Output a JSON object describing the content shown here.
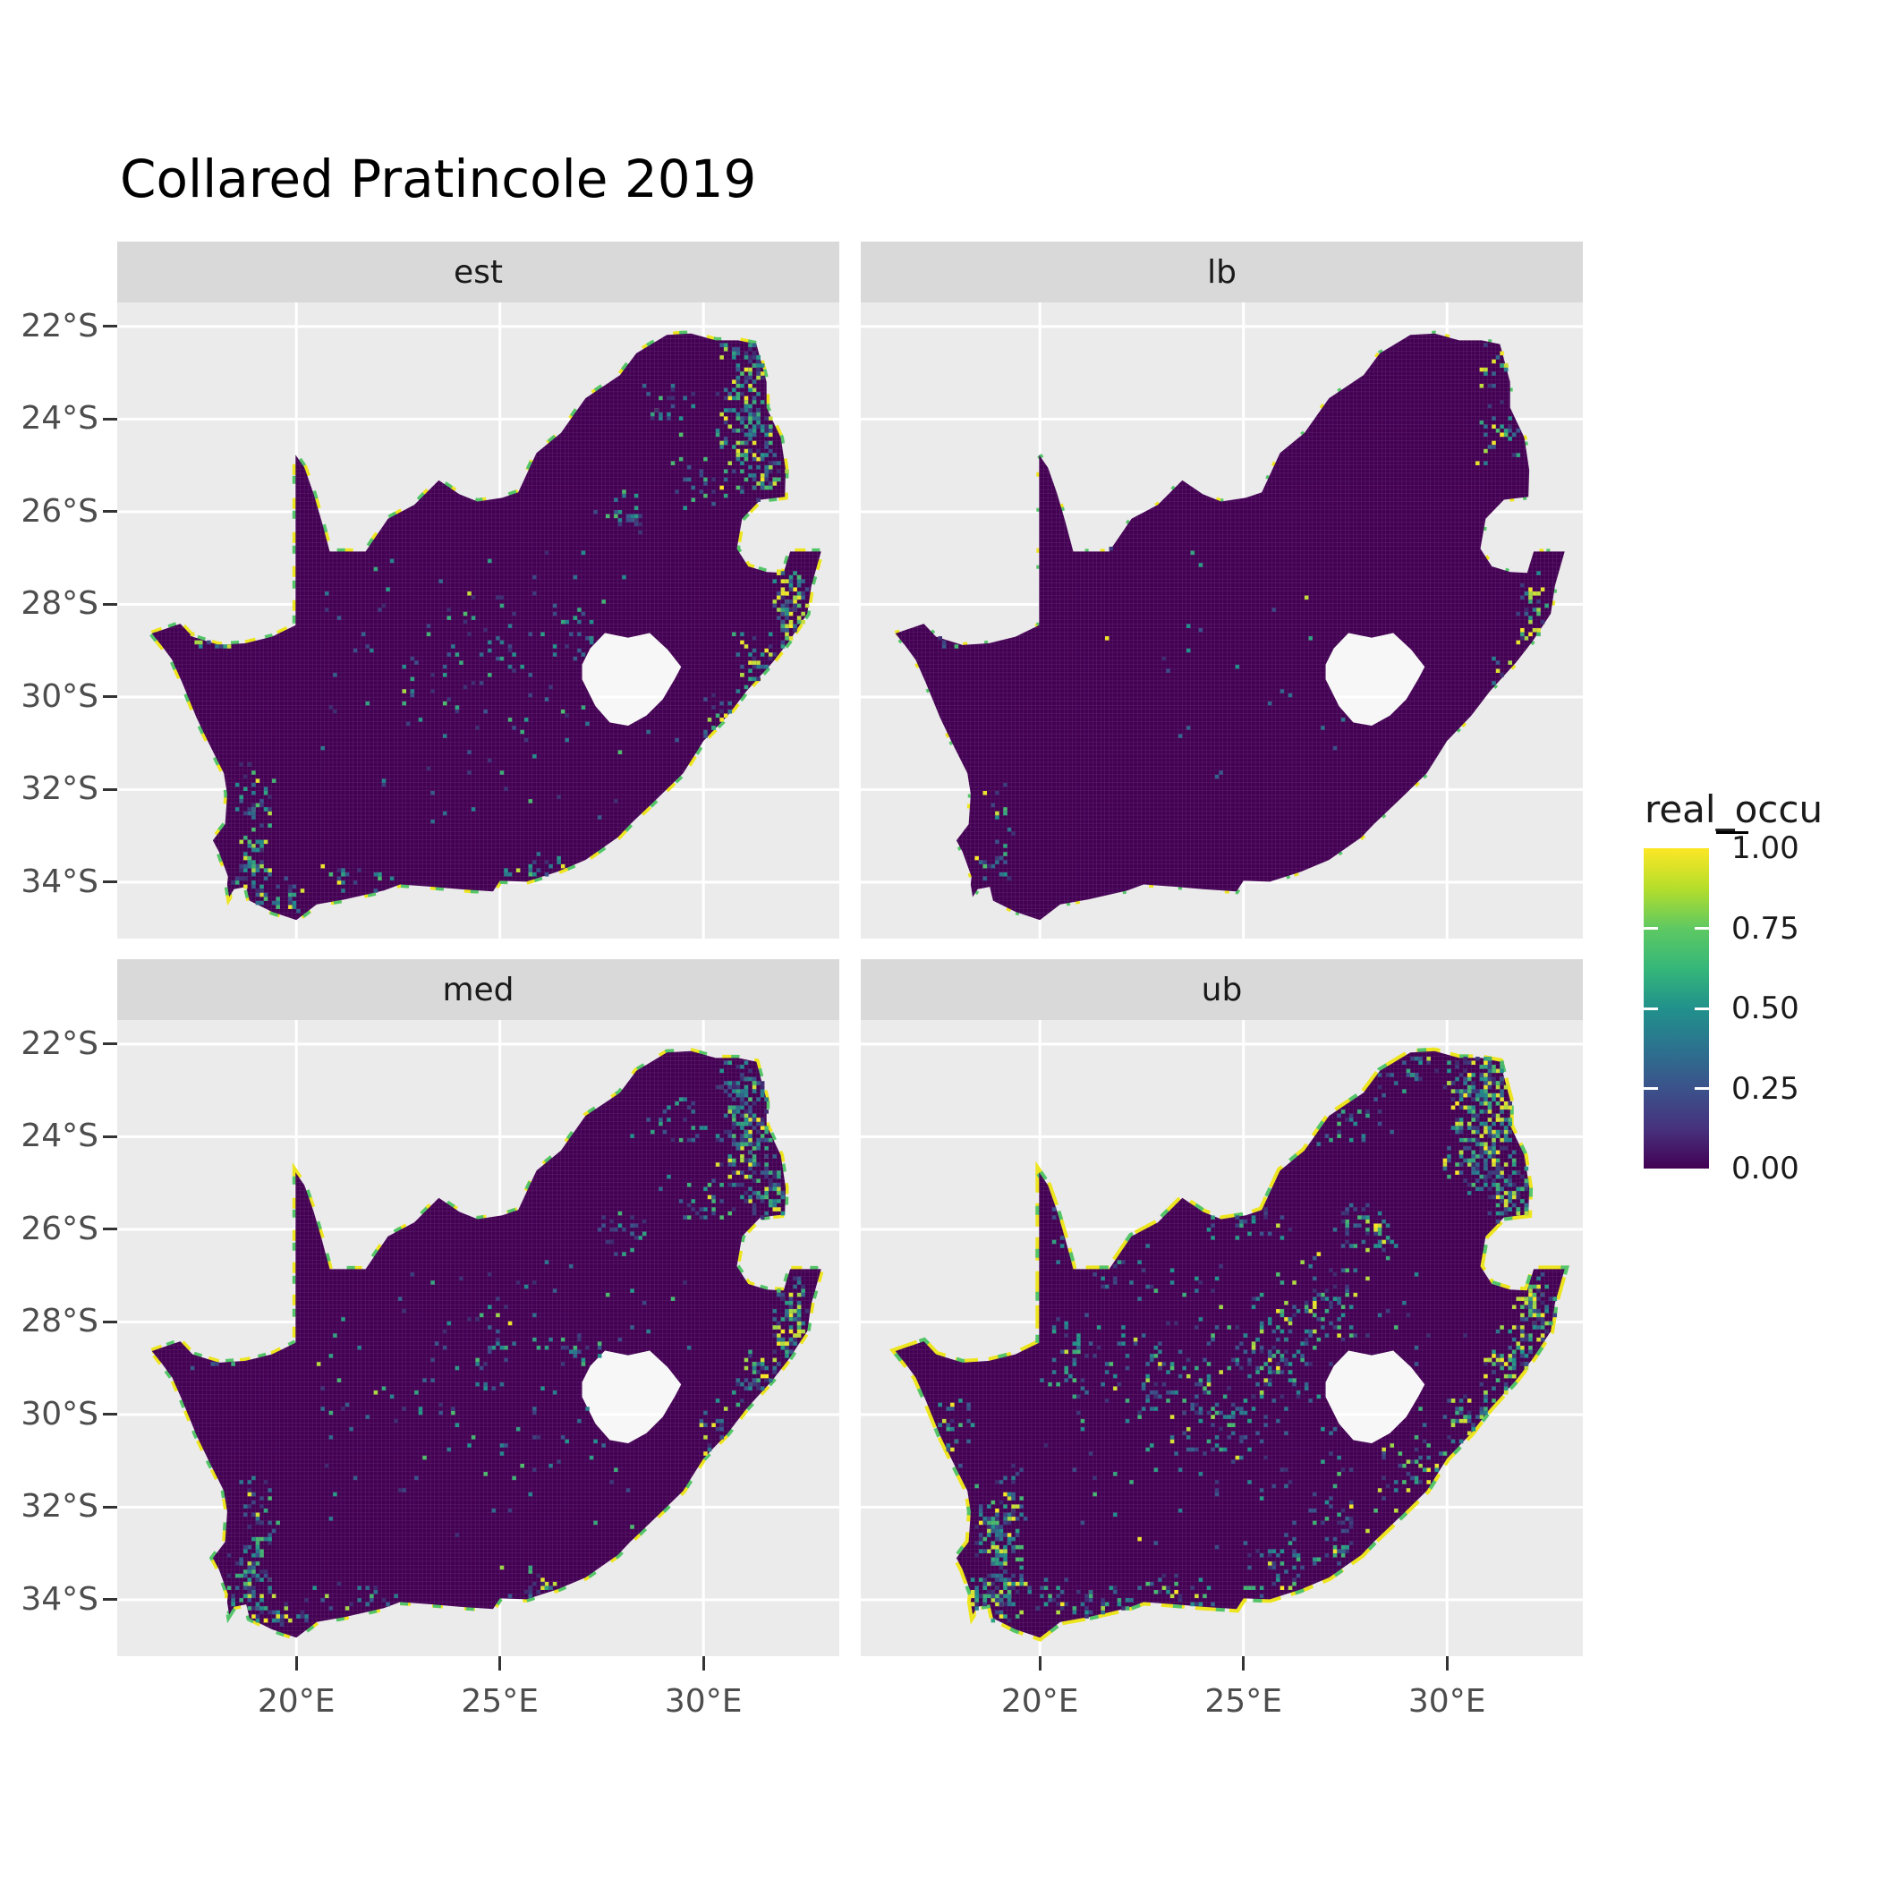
{
  "title": "Collared Pratincole 2019",
  "facets": [
    {
      "label": "est"
    },
    {
      "label": "lb"
    },
    {
      "label": "med"
    },
    {
      "label": "ub"
    }
  ],
  "axes": {
    "y_tick_labels": [
      "22°S",
      "24°S",
      "26°S",
      "28°S",
      "30°S",
      "32°S",
      "34°S"
    ],
    "x_tick_labels": [
      "20°E",
      "25°E",
      "30°E"
    ]
  },
  "legend": {
    "title": "real_occu",
    "tick_labels": [
      "1.00",
      "0.75",
      "0.50",
      "0.25",
      "0.00"
    ]
  },
  "colors": {
    "panel_bg": "#EBEBEB",
    "strip_bg": "#D9D9D9",
    "gridline": "#FFFFFF",
    "axis_text": "#4D4D4D",
    "tick_mark": "#333333",
    "base_fill": "#440154",
    "cell_grid_line": "rgba(255,255,255,0.14)",
    "hole_overlay": "rgba(255,255,255,0.62)",
    "coast_yellow": "#EDE51F",
    "coast_green": "#54C568"
  },
  "chart_data": {
    "type": "heatmap",
    "title": "Collared Pratincole 2019",
    "legend_title": "real_occu",
    "region": "South Africa occupancy raster, faceted by estimate type",
    "facets": [
      "est",
      "lb",
      "med",
      "ub"
    ],
    "value_range": [
      0,
      1
    ],
    "legend_breaks": [
      1.0,
      0.75,
      0.5,
      0.25,
      0.0
    ],
    "palette": "viridis",
    "viridis_stops": [
      [
        0,
        "#440154"
      ],
      [
        0.25,
        "#3B528B"
      ],
      [
        0.5,
        "#21918C"
      ],
      [
        0.75,
        "#5EC962"
      ],
      [
        1,
        "#FDE725"
      ]
    ],
    "lon_ticks": [
      20,
      25,
      30
    ],
    "lat_ticks": [
      -22,
      -24,
      -26,
      -28,
      -30,
      -32,
      -34
    ],
    "extent": {
      "lon": [
        15.6,
        33.34
      ],
      "lat": [
        -35.22,
        -21.48
      ]
    },
    "grid": true,
    "legend_position": "right",
    "cell_size_deg": 0.1,
    "boundary": [
      [
        16.45,
        -28.63
      ],
      [
        17.15,
        -28.42
      ],
      [
        17.45,
        -28.7
      ],
      [
        18.1,
        -28.88
      ],
      [
        18.75,
        -28.84
      ],
      [
        19.4,
        -28.7
      ],
      [
        19.98,
        -28.45
      ],
      [
        19.98,
        -24.77
      ],
      [
        20.2,
        -25.05
      ],
      [
        20.42,
        -25.6
      ],
      [
        20.62,
        -26.2
      ],
      [
        20.82,
        -26.86
      ],
      [
        21.7,
        -26.86
      ],
      [
        22.25,
        -26.15
      ],
      [
        22.9,
        -25.85
      ],
      [
        23.5,
        -25.32
      ],
      [
        24.0,
        -25.62
      ],
      [
        24.45,
        -25.78
      ],
      [
        25.05,
        -25.7
      ],
      [
        25.45,
        -25.58
      ],
      [
        25.9,
        -24.73
      ],
      [
        26.5,
        -24.3
      ],
      [
        27.1,
        -23.55
      ],
      [
        27.95,
        -23.05
      ],
      [
        28.35,
        -22.58
      ],
      [
        29.1,
        -22.18
      ],
      [
        29.7,
        -22.15
      ],
      [
        30.3,
        -22.3
      ],
      [
        30.85,
        -22.3
      ],
      [
        31.3,
        -22.38
      ],
      [
        31.55,
        -23.2
      ],
      [
        31.55,
        -23.75
      ],
      [
        31.9,
        -24.4
      ],
      [
        32.02,
        -25.1
      ],
      [
        32.0,
        -25.68
      ],
      [
        31.4,
        -25.74
      ],
      [
        30.95,
        -26.15
      ],
      [
        30.82,
        -26.8
      ],
      [
        31.1,
        -27.18
      ],
      [
        31.55,
        -27.3
      ],
      [
        31.97,
        -27.32
      ],
      [
        32.13,
        -26.86
      ],
      [
        32.89,
        -26.86
      ],
      [
        32.65,
        -27.6
      ],
      [
        32.55,
        -28.2
      ],
      [
        32.1,
        -28.8
      ],
      [
        31.7,
        -29.25
      ],
      [
        31.05,
        -29.88
      ],
      [
        30.6,
        -30.4
      ],
      [
        30.0,
        -30.95
      ],
      [
        29.5,
        -31.65
      ],
      [
        28.8,
        -32.25
      ],
      [
        28.2,
        -32.75
      ],
      [
        27.9,
        -33.03
      ],
      [
        27.1,
        -33.52
      ],
      [
        26.4,
        -33.78
      ],
      [
        25.65,
        -33.99
      ],
      [
        25.0,
        -33.97
      ],
      [
        24.83,
        -34.2
      ],
      [
        24.0,
        -34.15
      ],
      [
        23.35,
        -34.1
      ],
      [
        22.55,
        -34.05
      ],
      [
        22.15,
        -34.18
      ],
      [
        21.2,
        -34.37
      ],
      [
        20.5,
        -34.48
      ],
      [
        20.0,
        -34.82
      ],
      [
        19.4,
        -34.64
      ],
      [
        18.85,
        -34.4
      ],
      [
        18.77,
        -34.1
      ],
      [
        18.47,
        -34.15
      ],
      [
        18.35,
        -34.32
      ],
      [
        18.3,
        -34.05
      ],
      [
        18.32,
        -33.88
      ],
      [
        18.1,
        -33.35
      ],
      [
        17.95,
        -33.1
      ],
      [
        18.25,
        -32.75
      ],
      [
        18.3,
        -32.1
      ],
      [
        18.22,
        -31.65
      ],
      [
        17.85,
        -31.0
      ],
      [
        17.55,
        -30.45
      ],
      [
        17.2,
        -29.7
      ],
      [
        16.95,
        -29.2
      ],
      [
        16.7,
        -28.9
      ]
    ],
    "lesotho_hole": [
      [
        27.02,
        -29.62
      ],
      [
        27.35,
        -30.2
      ],
      [
        27.7,
        -30.55
      ],
      [
        28.15,
        -30.62
      ],
      [
        28.6,
        -30.4
      ],
      [
        29.0,
        -30.05
      ],
      [
        29.3,
        -29.6
      ],
      [
        29.45,
        -29.35
      ],
      [
        29.12,
        -28.98
      ],
      [
        28.68,
        -28.62
      ],
      [
        28.15,
        -28.72
      ],
      [
        27.58,
        -28.62
      ],
      [
        27.22,
        -28.95
      ],
      [
        27.02,
        -29.3
      ]
    ],
    "coast_highlight": {
      "est": {
        "yellow_dash": [
          12,
          26
        ],
        "green_dash": [
          9,
          30
        ],
        "width": 7
      },
      "lb": {
        "yellow_dash": [
          5,
          80
        ],
        "green_dash": [
          4,
          60
        ],
        "width": 6
      },
      "med": {
        "yellow_dash": [
          12,
          24
        ],
        "green_dash": [
          9,
          28
        ],
        "width": 7
      },
      "ub": {
        "yellow_dash": [
          26,
          12
        ],
        "green_dash": [
          10,
          38
        ],
        "width": 8
      }
    },
    "hotspots": {
      "est": [
        [
          31.35,
          -22.9,
          150,
          0.8,
          0.8,
          0.12
        ],
        [
          31.05,
          -24.15,
          110,
          0.6,
          0.75,
          0.15
        ],
        [
          31.55,
          -25.2,
          55,
          0.5,
          0.55,
          0.15
        ],
        [
          32.0,
          -26.0,
          35,
          0.35,
          0.5,
          0.28
        ],
        [
          32.2,
          -27.7,
          55,
          0.4,
          0.55,
          0.35
        ],
        [
          32.1,
          -28.45,
          55,
          0.35,
          0.6,
          0.35
        ],
        [
          31.3,
          -29.3,
          45,
          0.5,
          0.6,
          0.2
        ],
        [
          30.4,
          -30.5,
          28,
          0.45,
          0.55,
          0.15
        ],
        [
          28.0,
          -26.05,
          25,
          0.55,
          0.4,
          0.06
        ],
        [
          26.9,
          -28.7,
          18,
          0.8,
          0.6,
          0.04
        ],
        [
          24.9,
          -28.5,
          16,
          0.9,
          0.7,
          0.04
        ],
        [
          19.05,
          -32.35,
          45,
          0.4,
          0.9,
          0.08
        ],
        [
          18.9,
          -33.65,
          55,
          0.5,
          0.6,
          0.1
        ],
        [
          19.7,
          -34.3,
          30,
          0.8,
          0.3,
          0.15
        ],
        [
          21.6,
          -33.95,
          18,
          1.0,
          0.35,
          0.08
        ],
        [
          25.9,
          -33.7,
          20,
          0.9,
          0.4,
          0.1
        ],
        [
          17.95,
          -28.78,
          22,
          0.5,
          0.15,
          0.3
        ],
        [
          30.0,
          -25.3,
          28,
          0.8,
          0.55,
          0.06
        ],
        [
          29.2,
          -23.7,
          22,
          0.8,
          0.5,
          0.06
        ],
        [
          25.0,
          -29.5,
          120,
          4.2,
          2.6,
          0.02
        ]
      ],
      "lb": [
        [
          31.45,
          -22.9,
          40,
          0.6,
          0.7,
          0.2
        ],
        [
          31.3,
          -24.3,
          28,
          0.45,
          0.6,
          0.22
        ],
        [
          32.15,
          -27.9,
          22,
          0.3,
          0.5,
          0.3
        ],
        [
          32.05,
          -28.6,
          16,
          0.3,
          0.4,
          0.3
        ],
        [
          31.35,
          -29.45,
          12,
          0.4,
          0.45,
          0.15
        ],
        [
          18.95,
          -33.55,
          22,
          0.45,
          0.55,
          0.06
        ],
        [
          19.05,
          -32.45,
          10,
          0.35,
          0.6,
          0.05
        ],
        [
          17.95,
          -28.78,
          8,
          0.4,
          0.12,
          0.2
        ],
        [
          25.0,
          -29.5,
          26,
          4.0,
          2.5,
          0.02
        ]
      ],
      "med": [
        [
          31.35,
          -22.9,
          160,
          0.8,
          0.8,
          0.13
        ],
        [
          31.05,
          -24.15,
          115,
          0.6,
          0.75,
          0.16
        ],
        [
          31.55,
          -25.2,
          60,
          0.5,
          0.55,
          0.16
        ],
        [
          32.0,
          -26.0,
          38,
          0.35,
          0.5,
          0.3
        ],
        [
          32.2,
          -27.7,
          58,
          0.4,
          0.55,
          0.35
        ],
        [
          32.1,
          -28.45,
          58,
          0.35,
          0.6,
          0.35
        ],
        [
          31.3,
          -29.3,
          48,
          0.5,
          0.6,
          0.2
        ],
        [
          30.4,
          -30.5,
          30,
          0.45,
          0.55,
          0.15
        ],
        [
          28.0,
          -26.05,
          26,
          0.55,
          0.4,
          0.06
        ],
        [
          26.9,
          -28.7,
          20,
          0.8,
          0.6,
          0.04
        ],
        [
          24.9,
          -28.5,
          18,
          0.9,
          0.7,
          0.04
        ],
        [
          19.05,
          -32.35,
          55,
          0.4,
          1.0,
          0.1
        ],
        [
          18.9,
          -33.65,
          60,
          0.5,
          0.6,
          0.12
        ],
        [
          19.7,
          -34.3,
          32,
          0.8,
          0.3,
          0.15
        ],
        [
          21.6,
          -33.95,
          20,
          1.0,
          0.35,
          0.08
        ],
        [
          25.9,
          -33.7,
          22,
          0.9,
          0.4,
          0.1
        ],
        [
          17.95,
          -28.78,
          24,
          0.5,
          0.15,
          0.32
        ],
        [
          30.0,
          -25.3,
          30,
          0.8,
          0.55,
          0.06
        ],
        [
          29.2,
          -23.7,
          24,
          0.8,
          0.5,
          0.06
        ],
        [
          25.0,
          -29.5,
          130,
          4.2,
          2.6,
          0.02
        ]
      ],
      "ub": [
        [
          31.2,
          -23.1,
          250,
          1.0,
          1.0,
          0.18
        ],
        [
          30.9,
          -24.4,
          150,
          0.8,
          0.8,
          0.18
        ],
        [
          31.6,
          -25.4,
          80,
          0.5,
          0.6,
          0.2
        ],
        [
          32.0,
          -26.1,
          55,
          0.4,
          0.55,
          0.3
        ],
        [
          32.2,
          -27.8,
          85,
          0.45,
          0.7,
          0.4
        ],
        [
          31.6,
          -28.9,
          85,
          0.6,
          0.7,
          0.3
        ],
        [
          30.6,
          -30.1,
          55,
          0.6,
          0.6,
          0.2
        ],
        [
          28.05,
          -26.1,
          55,
          0.7,
          0.5,
          0.15
        ],
        [
          26.9,
          -27.7,
          65,
          1.0,
          0.8,
          0.15
        ],
        [
          25.6,
          -28.8,
          55,
          0.9,
          0.8,
          0.15
        ],
        [
          24.4,
          -30.0,
          48,
          1.0,
          0.9,
          0.1
        ],
        [
          22.6,
          -29.0,
          42,
          1.0,
          0.9,
          0.1
        ],
        [
          20.8,
          -28.7,
          32,
          0.9,
          0.7,
          0.1
        ],
        [
          19.05,
          -32.6,
          150,
          0.55,
          1.2,
          0.15
        ],
        [
          18.85,
          -33.95,
          75,
          0.55,
          0.5,
          0.15
        ],
        [
          20.6,
          -34.0,
          55,
          1.2,
          0.45,
          0.12
        ],
        [
          23.1,
          -33.85,
          45,
          1.2,
          0.45,
          0.1
        ],
        [
          25.9,
          -33.4,
          45,
          0.9,
          0.65,
          0.1
        ],
        [
          27.5,
          -32.5,
          42,
          0.8,
          0.8,
          0.1
        ],
        [
          29.1,
          -31.3,
          42,
          0.7,
          0.7,
          0.15
        ],
        [
          17.85,
          -30.6,
          32,
          0.5,
          1.0,
          0.15
        ],
        [
          21.9,
          -26.75,
          26,
          0.9,
          0.45,
          0.14
        ],
        [
          25.1,
          -25.9,
          26,
          0.9,
          0.4,
          0.12
        ],
        [
          27.6,
          -23.5,
          36,
          1.0,
          0.7,
          0.12
        ],
        [
          29.1,
          -22.6,
          30,
          0.9,
          0.45,
          0.15
        ],
        [
          20.55,
          -25.9,
          10,
          0.25,
          0.7,
          0.1
        ],
        [
          25.0,
          -29.5,
          240,
          4.3,
          2.7,
          0.05
        ]
      ]
    }
  }
}
